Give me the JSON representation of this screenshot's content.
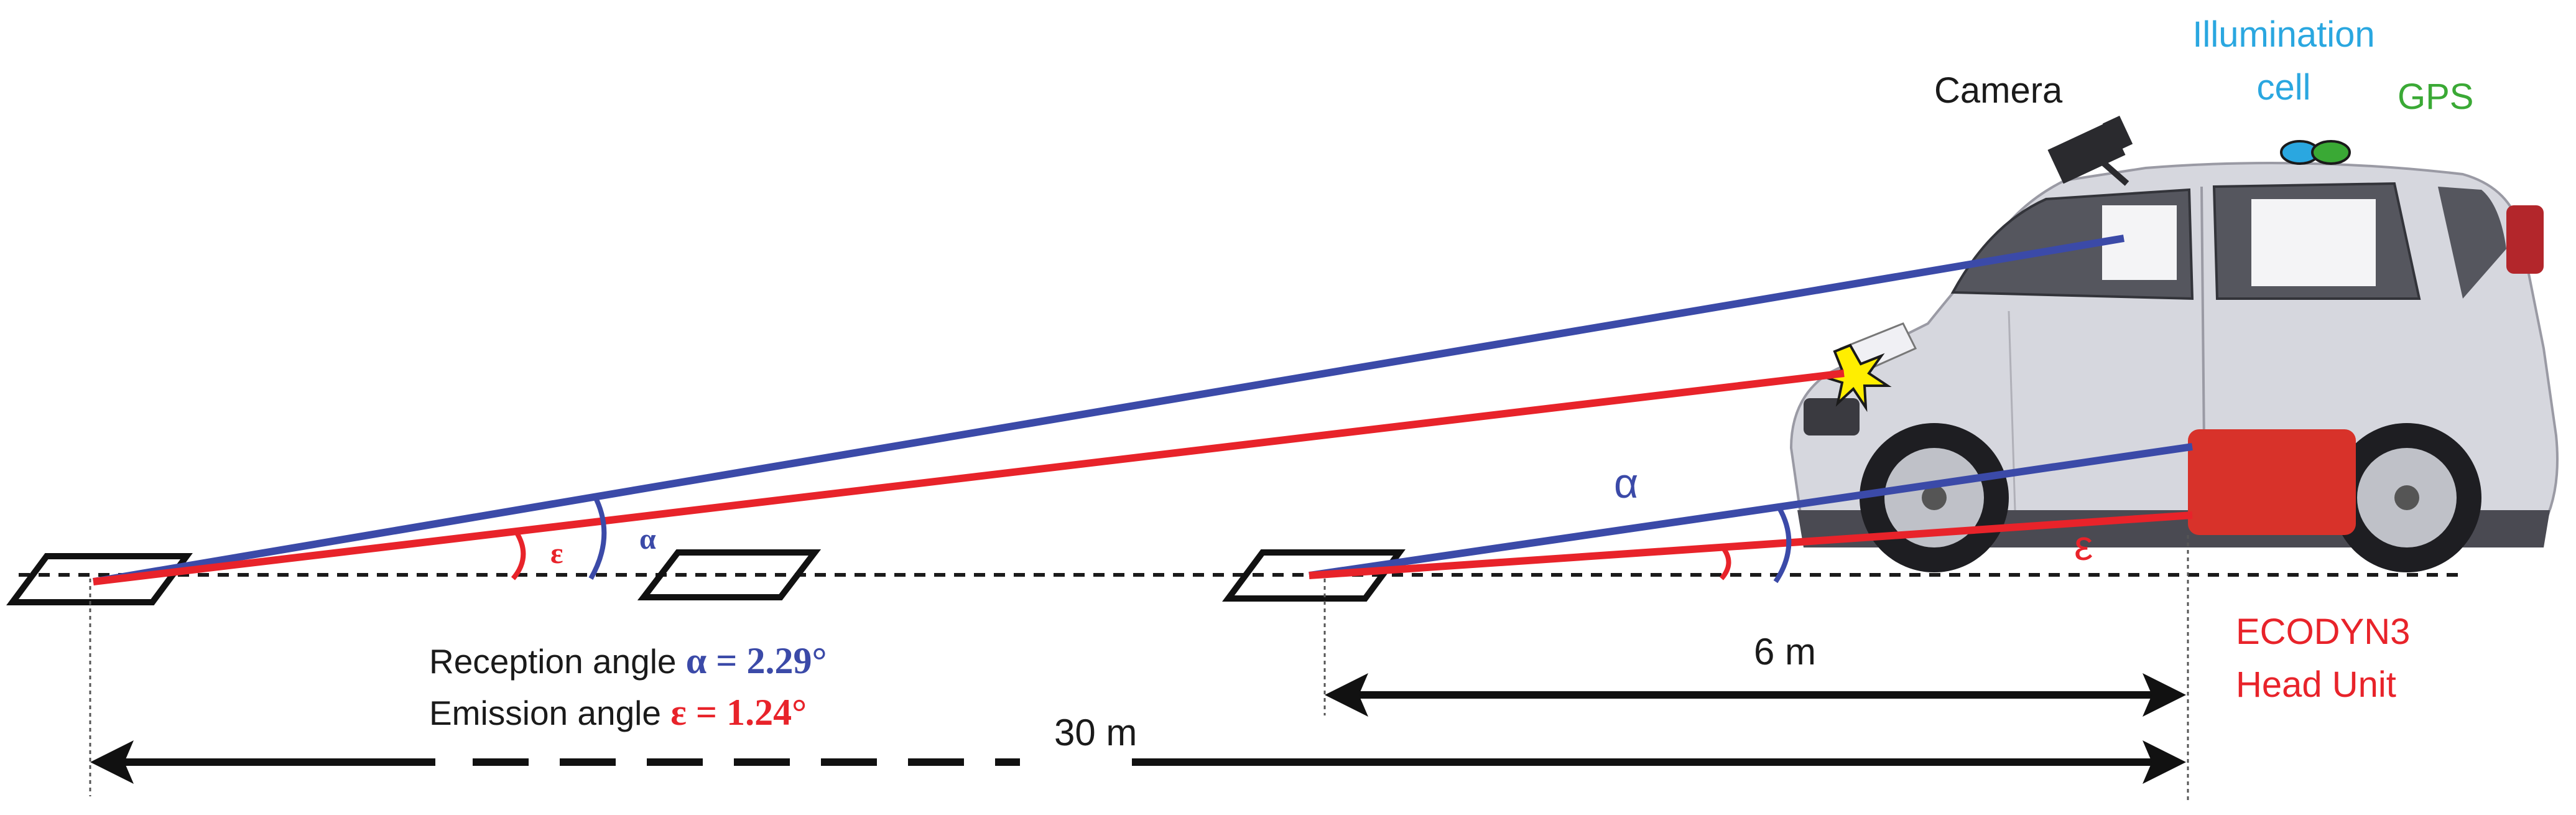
{
  "labels": {
    "camera": "Camera",
    "illumination_line1": "Illumination",
    "illumination_line2": "cell",
    "gps": "GPS",
    "head_unit_line1": "ECODYN3",
    "head_unit_line2": "Head Unit",
    "reception_prefix": "Reception angle",
    "reception_value": "α = 2.29°",
    "emission_prefix": "Emission angle",
    "emission_value": "ε = 1.24°",
    "dist_far": "30 m",
    "dist_near": "6 m",
    "alpha_far": "α",
    "eps_far": "ε",
    "alpha_near": "α",
    "eps_near": "ε"
  },
  "colors": {
    "reception": "#3b4aa8",
    "emission": "#e8232a",
    "illumination_text": "#2aa7e0",
    "gps_text": "#3aa935",
    "head_unit_text": "#e8232a",
    "text": "#1a1a1a",
    "car_body": "#d9d9e0",
    "head_unit_box": "#d8322a"
  }
}
